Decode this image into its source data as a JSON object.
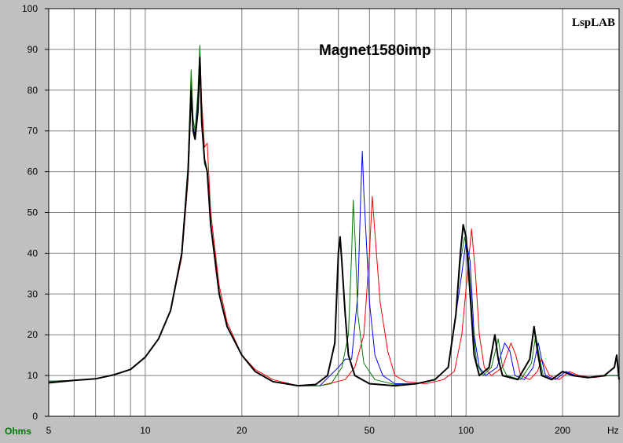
{
  "chart_data": {
    "type": "line",
    "title": "Magnet1580imp",
    "brand": "LspLAB",
    "ylabel": "Ohms",
    "xlabel": "Hz",
    "xscale": "log",
    "xlim": [
      5,
      300
    ],
    "ylim": [
      0,
      100
    ],
    "grid": true,
    "x_tick_labels": [
      {
        "value": 5,
        "label": "5"
      },
      {
        "value": 10,
        "label": "10"
      },
      {
        "value": 20,
        "label": "20"
      },
      {
        "value": 50,
        "label": "50"
      },
      {
        "value": 100,
        "label": "100"
      },
      {
        "value": 200,
        "label": "200"
      }
    ],
    "y_ticks": [
      0,
      10,
      20,
      30,
      40,
      50,
      60,
      70,
      80,
      90,
      100
    ],
    "series": [
      {
        "color": "#000000",
        "width": 2,
        "points": [
          [
            5,
            8.2
          ],
          [
            6,
            8.8
          ],
          [
            7,
            9.2
          ],
          [
            8,
            10.2
          ],
          [
            9,
            11.5
          ],
          [
            10,
            14.5
          ],
          [
            11,
            19
          ],
          [
            12,
            26
          ],
          [
            13,
            40
          ],
          [
            13.6,
            60
          ],
          [
            13.9,
            80
          ],
          [
            14.1,
            70
          ],
          [
            14.3,
            68
          ],
          [
            14.6,
            75
          ],
          [
            14.8,
            88
          ],
          [
            15.0,
            72
          ],
          [
            15.3,
            63
          ],
          [
            15.6,
            60
          ],
          [
            16,
            47
          ],
          [
            17,
            30
          ],
          [
            18,
            22
          ],
          [
            20,
            15
          ],
          [
            22,
            11
          ],
          [
            25,
            8.5
          ],
          [
            30,
            7.5
          ],
          [
            34,
            7.8
          ],
          [
            37,
            10
          ],
          [
            39,
            18
          ],
          [
            40,
            40
          ],
          [
            40.5,
            44
          ],
          [
            41,
            38
          ],
          [
            42,
            25
          ],
          [
            43,
            15
          ],
          [
            45,
            10
          ],
          [
            50,
            8
          ],
          [
            60,
            7.5
          ],
          [
            70,
            8
          ],
          [
            80,
            9
          ],
          [
            88,
            12
          ],
          [
            93,
            25
          ],
          [
            96,
            40
          ],
          [
            98,
            47
          ],
          [
            100,
            44
          ],
          [
            103,
            30
          ],
          [
            106,
            15
          ],
          [
            110,
            10
          ],
          [
            118,
            12
          ],
          [
            123,
            20
          ],
          [
            126,
            14
          ],
          [
            130,
            10
          ],
          [
            145,
            9
          ],
          [
            158,
            14
          ],
          [
            163,
            22
          ],
          [
            167,
            16
          ],
          [
            172,
            10
          ],
          [
            185,
            9
          ],
          [
            200,
            11
          ],
          [
            215,
            10
          ],
          [
            240,
            9.5
          ],
          [
            270,
            10
          ],
          [
            290,
            12
          ],
          [
            295,
            15
          ],
          [
            300,
            9
          ]
        ]
      },
      {
        "color": "#007a00",
        "width": 1,
        "points": [
          [
            5,
            8.6
          ],
          [
            6,
            8.8
          ],
          [
            7,
            9.2
          ],
          [
            8,
            10.2
          ],
          [
            9,
            11.5
          ],
          [
            10,
            14.5
          ],
          [
            11,
            19
          ],
          [
            12,
            26
          ],
          [
            13,
            40
          ],
          [
            13.6,
            62
          ],
          [
            13.9,
            85
          ],
          [
            14.1,
            73
          ],
          [
            14.3,
            70
          ],
          [
            14.6,
            80
          ],
          [
            14.8,
            91
          ],
          [
            15.0,
            74
          ],
          [
            15.3,
            62
          ],
          [
            15.6,
            60
          ],
          [
            16,
            47
          ],
          [
            17,
            30
          ],
          [
            18,
            22
          ],
          [
            20,
            15
          ],
          [
            22,
            11
          ],
          [
            25,
            8.5
          ],
          [
            30,
            7.5
          ],
          [
            35,
            7.5
          ],
          [
            38,
            8
          ],
          [
            41,
            12
          ],
          [
            43,
            20
          ],
          [
            44,
            40
          ],
          [
            44.5,
            53
          ],
          [
            45,
            45
          ],
          [
            46,
            25
          ],
          [
            48,
            13
          ],
          [
            52,
            9
          ],
          [
            60,
            7.8
          ],
          [
            70,
            8
          ],
          [
            80,
            9
          ],
          [
            88,
            12
          ],
          [
            93,
            25
          ],
          [
            96,
            38
          ],
          [
            99,
            44
          ],
          [
            102,
            38
          ],
          [
            105,
            22
          ],
          [
            108,
            13
          ],
          [
            113,
            10
          ],
          [
            120,
            12
          ],
          [
            126,
            19
          ],
          [
            130,
            12
          ],
          [
            134,
            10
          ],
          [
            148,
            9
          ],
          [
            160,
            13
          ],
          [
            165,
            20
          ],
          [
            169,
            15
          ],
          [
            174,
            10
          ],
          [
            185,
            9
          ],
          [
            200,
            11
          ],
          [
            215,
            10
          ],
          [
            240,
            9.5
          ],
          [
            270,
            10
          ],
          [
            300,
            10
          ]
        ]
      },
      {
        "color": "#0000ff",
        "width": 1,
        "points": [
          [
            5,
            8.6
          ],
          [
            6,
            8.8
          ],
          [
            7,
            9.2
          ],
          [
            8,
            10.2
          ],
          [
            9,
            11.5
          ],
          [
            10,
            14.5
          ],
          [
            11,
            19
          ],
          [
            12,
            26
          ],
          [
            13,
            40
          ],
          [
            13.6,
            61
          ],
          [
            13.9,
            82
          ],
          [
            14.1,
            71
          ],
          [
            14.3,
            69
          ],
          [
            14.6,
            78
          ],
          [
            14.8,
            89
          ],
          [
            15.0,
            73
          ],
          [
            15.3,
            62
          ],
          [
            15.6,
            60
          ],
          [
            16,
            47
          ],
          [
            17,
            30
          ],
          [
            18,
            22
          ],
          [
            20,
            15
          ],
          [
            22,
            11
          ],
          [
            25,
            8.5
          ],
          [
            30,
            7.5
          ],
          [
            35,
            7.5
          ],
          [
            40,
            12
          ],
          [
            42,
            14
          ],
          [
            44,
            14
          ],
          [
            46,
            30
          ],
          [
            47,
            55
          ],
          [
            47.5,
            65
          ],
          [
            48,
            55
          ],
          [
            50,
            28
          ],
          [
            52,
            15
          ],
          [
            55,
            10
          ],
          [
            60,
            8
          ],
          [
            70,
            8
          ],
          [
            80,
            9
          ],
          [
            88,
            12
          ],
          [
            93,
            25
          ],
          [
            97,
            35
          ],
          [
            100,
            43
          ],
          [
            103,
            38
          ],
          [
            106,
            20
          ],
          [
            110,
            12
          ],
          [
            115,
            10
          ],
          [
            125,
            12
          ],
          [
            132,
            18
          ],
          [
            137,
            16
          ],
          [
            142,
            10
          ],
          [
            152,
            9
          ],
          [
            162,
            12
          ],
          [
            168,
            18
          ],
          [
            172,
            14
          ],
          [
            177,
            10
          ],
          [
            190,
            9
          ],
          [
            205,
            11
          ],
          [
            220,
            10
          ],
          [
            245,
            9.5
          ],
          [
            275,
            10
          ],
          [
            300,
            10
          ]
        ]
      },
      {
        "color": "#ff0000",
        "width": 1,
        "points": [
          [
            5,
            8.6
          ],
          [
            6,
            8.8
          ],
          [
            7,
            9.2
          ],
          [
            8,
            10.2
          ],
          [
            9,
            11.5
          ],
          [
            10,
            14.5
          ],
          [
            11,
            19
          ],
          [
            12,
            26
          ],
          [
            13,
            39
          ],
          [
            13.6,
            58
          ],
          [
            13.9,
            78
          ],
          [
            14.1,
            71
          ],
          [
            14.3,
            69
          ],
          [
            14.6,
            78
          ],
          [
            14.8,
            90
          ],
          [
            15.0,
            77
          ],
          [
            15.3,
            66
          ],
          [
            15.6,
            67
          ],
          [
            16,
            50
          ],
          [
            17,
            32
          ],
          [
            18,
            23
          ],
          [
            20,
            15
          ],
          [
            22,
            11.5
          ],
          [
            25,
            9
          ],
          [
            30,
            7.5
          ],
          [
            35,
            7.5
          ],
          [
            42,
            9
          ],
          [
            45,
            12
          ],
          [
            48,
            20
          ],
          [
            50,
            40
          ],
          [
            51,
            54
          ],
          [
            52,
            45
          ],
          [
            54,
            28
          ],
          [
            57,
            16
          ],
          [
            60,
            10
          ],
          [
            65,
            8.5
          ],
          [
            75,
            8
          ],
          [
            85,
            9
          ],
          [
            92,
            11
          ],
          [
            97,
            20
          ],
          [
            101,
            35
          ],
          [
            104,
            46
          ],
          [
            107,
            35
          ],
          [
            110,
            20
          ],
          [
            114,
            12
          ],
          [
            120,
            10
          ],
          [
            130,
            12
          ],
          [
            138,
            18
          ],
          [
            143,
            15
          ],
          [
            148,
            10
          ],
          [
            158,
            9
          ],
          [
            167,
            11
          ],
          [
            172,
            14
          ],
          [
            177,
            12
          ],
          [
            182,
            10
          ],
          [
            195,
            9
          ],
          [
            210,
            11
          ],
          [
            225,
            10
          ],
          [
            250,
            9.5
          ],
          [
            280,
            10
          ],
          [
            300,
            10
          ]
        ]
      }
    ]
  }
}
